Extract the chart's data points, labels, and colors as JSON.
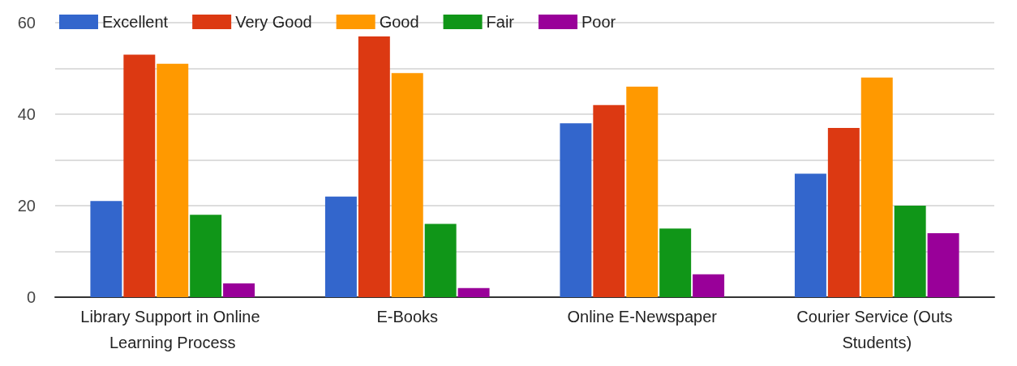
{
  "chart_data": {
    "type": "bar",
    "categories": [
      "Library Support in Online Learning Process",
      "E-Books",
      "Online E-Newspaper",
      "Courier Service (Outs Students)"
    ],
    "series": [
      {
        "name": "Excellent",
        "color": "#3366cc",
        "values": [
          21,
          22,
          38,
          27
        ]
      },
      {
        "name": "Very Good",
        "color": "#dc3912",
        "values": [
          53,
          57,
          42,
          37
        ]
      },
      {
        "name": "Good",
        "color": "#ff9900",
        "values": [
          51,
          49,
          46,
          48
        ]
      },
      {
        "name": "Fair",
        "color": "#109618",
        "values": [
          18,
          16,
          15,
          20
        ]
      },
      {
        "name": "Poor",
        "color": "#990099",
        "values": [
          3,
          2,
          5,
          14
        ]
      }
    ],
    "ylim": [
      0,
      60
    ],
    "yticks": [
      0,
      {
        "value": 10,
        "label": null
      },
      20,
      {
        "value": 30,
        "label": null
      },
      40,
      {
        "value": 50,
        "label": null
      },
      60
    ],
    "grid": true,
    "legend": "top left"
  }
}
